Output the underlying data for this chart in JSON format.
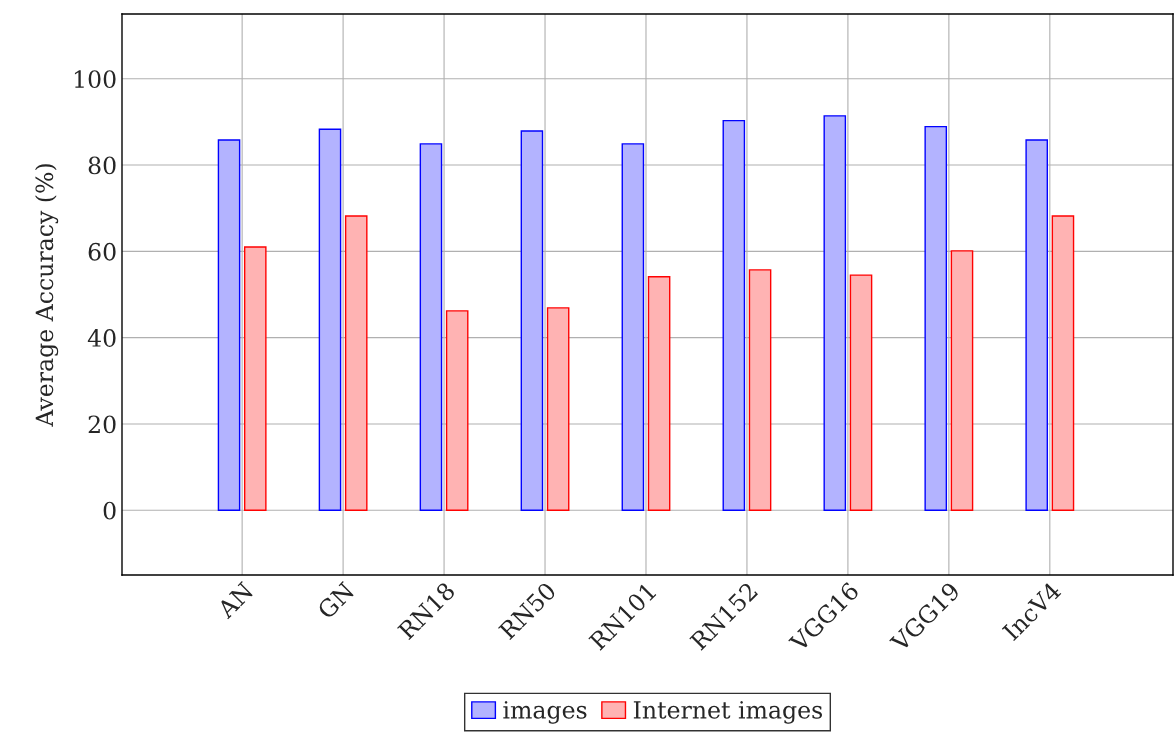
{
  "chart_data": {
    "type": "bar",
    "ylabel": "Average Accuracy (%)",
    "categories": [
      "AN",
      "GN",
      "RN18",
      "RN50",
      "RN101",
      "RN152",
      "VGG16",
      "VGG19",
      "IncV4"
    ],
    "series": [
      {
        "name": "images",
        "color": "#b3b3ff",
        "values": [
          85.8,
          88.3,
          84.9,
          87.9,
          84.9,
          90.3,
          91.4,
          88.9,
          85.8
        ]
      },
      {
        "name": "Internet images",
        "color": "#ffb3b3",
        "values": [
          61.0,
          68.2,
          46.2,
          46.9,
          54.1,
          55.7,
          54.5,
          60.1,
          68.2
        ]
      }
    ],
    "ylim": [
      -15,
      115
    ],
    "yticks": [
      0,
      20,
      40,
      60,
      80,
      100
    ],
    "grid": true,
    "legend": "bottom"
  }
}
